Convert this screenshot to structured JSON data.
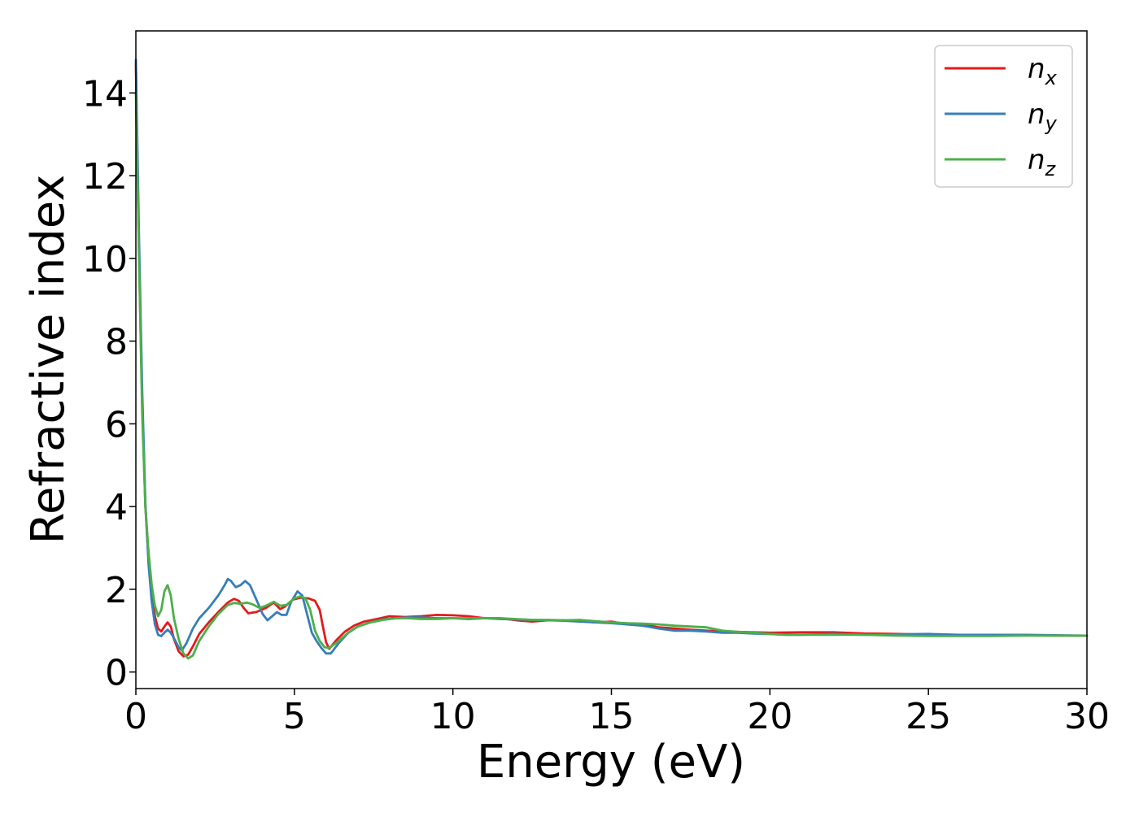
{
  "chart_data": {
    "type": "line",
    "title": "",
    "xlabel": "Energy (eV)",
    "ylabel": "Refractive index",
    "xlim": [
      0,
      30
    ],
    "ylim": [
      -0.4,
      15.5
    ],
    "x_ticks": [
      0,
      5,
      10,
      15,
      20,
      25,
      30
    ],
    "y_ticks": [
      0,
      2,
      4,
      6,
      8,
      10,
      12,
      14
    ],
    "grid": false,
    "legend_position": "top-right",
    "series": [
      {
        "name": "n_x",
        "label_base": "n",
        "label_sub": "x",
        "color": "#e41a1c",
        "points": [
          [
            0,
            14.7
          ],
          [
            0.1,
            10
          ],
          [
            0.2,
            6.5
          ],
          [
            0.3,
            4
          ],
          [
            0.4,
            2.7
          ],
          [
            0.5,
            1.9
          ],
          [
            0.6,
            1.35
          ],
          [
            0.7,
            1.05
          ],
          [
            0.8,
            0.98
          ],
          [
            0.9,
            1.1
          ],
          [
            1.0,
            1.2
          ],
          [
            1.1,
            1.1
          ],
          [
            1.2,
            0.8
          ],
          [
            1.35,
            0.5
          ],
          [
            1.5,
            0.38
          ],
          [
            1.65,
            0.42
          ],
          [
            1.8,
            0.62
          ],
          [
            2.0,
            0.92
          ],
          [
            2.3,
            1.2
          ],
          [
            2.6,
            1.45
          ],
          [
            2.9,
            1.68
          ],
          [
            3.1,
            1.77
          ],
          [
            3.25,
            1.72
          ],
          [
            3.4,
            1.55
          ],
          [
            3.55,
            1.42
          ],
          [
            3.8,
            1.45
          ],
          [
            4.1,
            1.55
          ],
          [
            4.35,
            1.68
          ],
          [
            4.55,
            1.52
          ],
          [
            4.7,
            1.58
          ],
          [
            4.95,
            1.75
          ],
          [
            5.2,
            1.8
          ],
          [
            5.45,
            1.78
          ],
          [
            5.65,
            1.72
          ],
          [
            5.8,
            1.5
          ],
          [
            5.9,
            1.1
          ],
          [
            6.0,
            0.72
          ],
          [
            6.1,
            0.56
          ],
          [
            6.3,
            0.75
          ],
          [
            6.6,
            0.98
          ],
          [
            6.9,
            1.13
          ],
          [
            7.2,
            1.22
          ],
          [
            7.6,
            1.28
          ],
          [
            8.0,
            1.35
          ],
          [
            8.5,
            1.33
          ],
          [
            9.0,
            1.35
          ],
          [
            9.5,
            1.38
          ],
          [
            10.0,
            1.37
          ],
          [
            10.5,
            1.35
          ],
          [
            11.0,
            1.3
          ],
          [
            11.5,
            1.3
          ],
          [
            12.0,
            1.25
          ],
          [
            12.5,
            1.22
          ],
          [
            13.0,
            1.25
          ],
          [
            13.5,
            1.25
          ],
          [
            14.0,
            1.24
          ],
          [
            14.5,
            1.2
          ],
          [
            15.0,
            1.22
          ],
          [
            15.5,
            1.15
          ],
          [
            16.0,
            1.15
          ],
          [
            16.5,
            1.08
          ],
          [
            17.0,
            1.05
          ],
          [
            17.5,
            1.02
          ],
          [
            18.0,
            1.0
          ],
          [
            18.5,
            0.98
          ],
          [
            19.0,
            0.97
          ],
          [
            19.5,
            0.96
          ],
          [
            20.0,
            0.95
          ],
          [
            21.0,
            0.96
          ],
          [
            22.0,
            0.96
          ],
          [
            23.0,
            0.93
          ],
          [
            24.0,
            0.92
          ],
          [
            25.0,
            0.9
          ],
          [
            26.0,
            0.9
          ],
          [
            27.0,
            0.89
          ],
          [
            28.0,
            0.89
          ],
          [
            29.0,
            0.88
          ],
          [
            30.0,
            0.88
          ]
        ]
      },
      {
        "name": "n_y",
        "label_base": "n",
        "label_sub": "y",
        "color": "#377eb8",
        "points": [
          [
            0,
            14.8
          ],
          [
            0.1,
            10.5
          ],
          [
            0.2,
            6.8
          ],
          [
            0.3,
            4.1
          ],
          [
            0.4,
            2.6
          ],
          [
            0.5,
            1.7
          ],
          [
            0.6,
            1.15
          ],
          [
            0.7,
            0.9
          ],
          [
            0.8,
            0.87
          ],
          [
            0.9,
            0.95
          ],
          [
            1.0,
            1.02
          ],
          [
            1.1,
            0.95
          ],
          [
            1.2,
            0.82
          ],
          [
            1.35,
            0.6
          ],
          [
            1.45,
            0.52
          ],
          [
            1.6,
            0.7
          ],
          [
            1.8,
            1.05
          ],
          [
            2.0,
            1.3
          ],
          [
            2.3,
            1.55
          ],
          [
            2.6,
            1.85
          ],
          [
            2.8,
            2.1
          ],
          [
            2.9,
            2.25
          ],
          [
            3.0,
            2.2
          ],
          [
            3.15,
            2.05
          ],
          [
            3.3,
            2.1
          ],
          [
            3.45,
            2.2
          ],
          [
            3.6,
            2.1
          ],
          [
            3.8,
            1.75
          ],
          [
            4.0,
            1.4
          ],
          [
            4.15,
            1.25
          ],
          [
            4.3,
            1.35
          ],
          [
            4.45,
            1.45
          ],
          [
            4.6,
            1.38
          ],
          [
            4.75,
            1.38
          ],
          [
            4.9,
            1.7
          ],
          [
            5.1,
            1.95
          ],
          [
            5.25,
            1.85
          ],
          [
            5.4,
            1.4
          ],
          [
            5.55,
            0.95
          ],
          [
            5.7,
            0.75
          ],
          [
            5.85,
            0.58
          ],
          [
            6.0,
            0.45
          ],
          [
            6.15,
            0.45
          ],
          [
            6.4,
            0.7
          ],
          [
            6.7,
            0.95
          ],
          [
            7.0,
            1.1
          ],
          [
            7.4,
            1.2
          ],
          [
            7.8,
            1.27
          ],
          [
            8.2,
            1.3
          ],
          [
            8.6,
            1.32
          ],
          [
            9.0,
            1.32
          ],
          [
            9.5,
            1.3
          ],
          [
            10.0,
            1.3
          ],
          [
            10.5,
            1.28
          ],
          [
            11.0,
            1.3
          ],
          [
            11.5,
            1.28
          ],
          [
            12.0,
            1.27
          ],
          [
            12.5,
            1.26
          ],
          [
            13.0,
            1.25
          ],
          [
            13.5,
            1.24
          ],
          [
            14.0,
            1.22
          ],
          [
            14.5,
            1.2
          ],
          [
            15.0,
            1.18
          ],
          [
            15.5,
            1.15
          ],
          [
            16.0,
            1.12
          ],
          [
            16.5,
            1.05
          ],
          [
            17.0,
            1.0
          ],
          [
            17.5,
            1.0
          ],
          [
            18.0,
            0.98
          ],
          [
            18.5,
            0.95
          ],
          [
            19.0,
            0.95
          ],
          [
            19.5,
            0.93
          ],
          [
            20.0,
            0.92
          ],
          [
            20.5,
            0.9
          ],
          [
            21.0,
            0.9
          ],
          [
            22.0,
            0.92
          ],
          [
            23.0,
            0.9
          ],
          [
            24.0,
            0.91
          ],
          [
            25.0,
            0.92
          ],
          [
            26.0,
            0.9
          ],
          [
            27.0,
            0.9
          ],
          [
            28.0,
            0.9
          ],
          [
            29.0,
            0.89
          ],
          [
            30.0,
            0.88
          ]
        ]
      },
      {
        "name": "n_z",
        "label_base": "n",
        "label_sub": "z",
        "color": "#4daf4a",
        "points": [
          [
            0,
            14.0
          ],
          [
            0.1,
            10
          ],
          [
            0.2,
            6.2
          ],
          [
            0.3,
            4.0
          ],
          [
            0.4,
            2.9
          ],
          [
            0.5,
            2.1
          ],
          [
            0.6,
            1.6
          ],
          [
            0.7,
            1.35
          ],
          [
            0.8,
            1.5
          ],
          [
            0.9,
            1.95
          ],
          [
            1.0,
            2.1
          ],
          [
            1.1,
            1.85
          ],
          [
            1.2,
            1.3
          ],
          [
            1.35,
            0.8
          ],
          [
            1.5,
            0.45
          ],
          [
            1.65,
            0.33
          ],
          [
            1.8,
            0.4
          ],
          [
            2.0,
            0.75
          ],
          [
            2.3,
            1.1
          ],
          [
            2.6,
            1.4
          ],
          [
            2.9,
            1.62
          ],
          [
            3.1,
            1.67
          ],
          [
            3.3,
            1.65
          ],
          [
            3.5,
            1.68
          ],
          [
            3.7,
            1.63
          ],
          [
            3.9,
            1.55
          ],
          [
            4.1,
            1.6
          ],
          [
            4.35,
            1.7
          ],
          [
            4.55,
            1.6
          ],
          [
            4.75,
            1.62
          ],
          [
            5.0,
            1.78
          ],
          [
            5.2,
            1.83
          ],
          [
            5.35,
            1.78
          ],
          [
            5.5,
            1.5
          ],
          [
            5.65,
            1.0
          ],
          [
            5.8,
            0.75
          ],
          [
            5.95,
            0.6
          ],
          [
            6.1,
            0.58
          ],
          [
            6.4,
            0.75
          ],
          [
            6.7,
            0.95
          ],
          [
            7.0,
            1.1
          ],
          [
            7.4,
            1.2
          ],
          [
            7.8,
            1.26
          ],
          [
            8.2,
            1.3
          ],
          [
            8.6,
            1.3
          ],
          [
            9.0,
            1.28
          ],
          [
            9.5,
            1.28
          ],
          [
            10.0,
            1.3
          ],
          [
            10.5,
            1.3
          ],
          [
            11.0,
            1.3
          ],
          [
            11.5,
            1.3
          ],
          [
            12.0,
            1.28
          ],
          [
            12.5,
            1.26
          ],
          [
            13.0,
            1.26
          ],
          [
            13.5,
            1.25
          ],
          [
            14.0,
            1.26
          ],
          [
            14.5,
            1.23
          ],
          [
            15.0,
            1.2
          ],
          [
            15.5,
            1.18
          ],
          [
            16.0,
            1.17
          ],
          [
            16.5,
            1.15
          ],
          [
            17.0,
            1.12
          ],
          [
            17.5,
            1.1
          ],
          [
            18.0,
            1.08
          ],
          [
            18.5,
            1.0
          ],
          [
            19.0,
            0.97
          ],
          [
            19.5,
            0.95
          ],
          [
            20.0,
            0.92
          ],
          [
            20.5,
            0.9
          ],
          [
            21.0,
            0.9
          ],
          [
            22.0,
            0.9
          ],
          [
            23.0,
            0.9
          ],
          [
            24.0,
            0.88
          ],
          [
            25.0,
            0.87
          ],
          [
            26.0,
            0.87
          ],
          [
            27.0,
            0.87
          ],
          [
            28.0,
            0.88
          ],
          [
            29.0,
            0.88
          ],
          [
            30.0,
            0.88
          ]
        ]
      }
    ]
  },
  "colors": {
    "axis": "#000000",
    "legend_border": "#cccccc",
    "background": "#ffffff"
  }
}
